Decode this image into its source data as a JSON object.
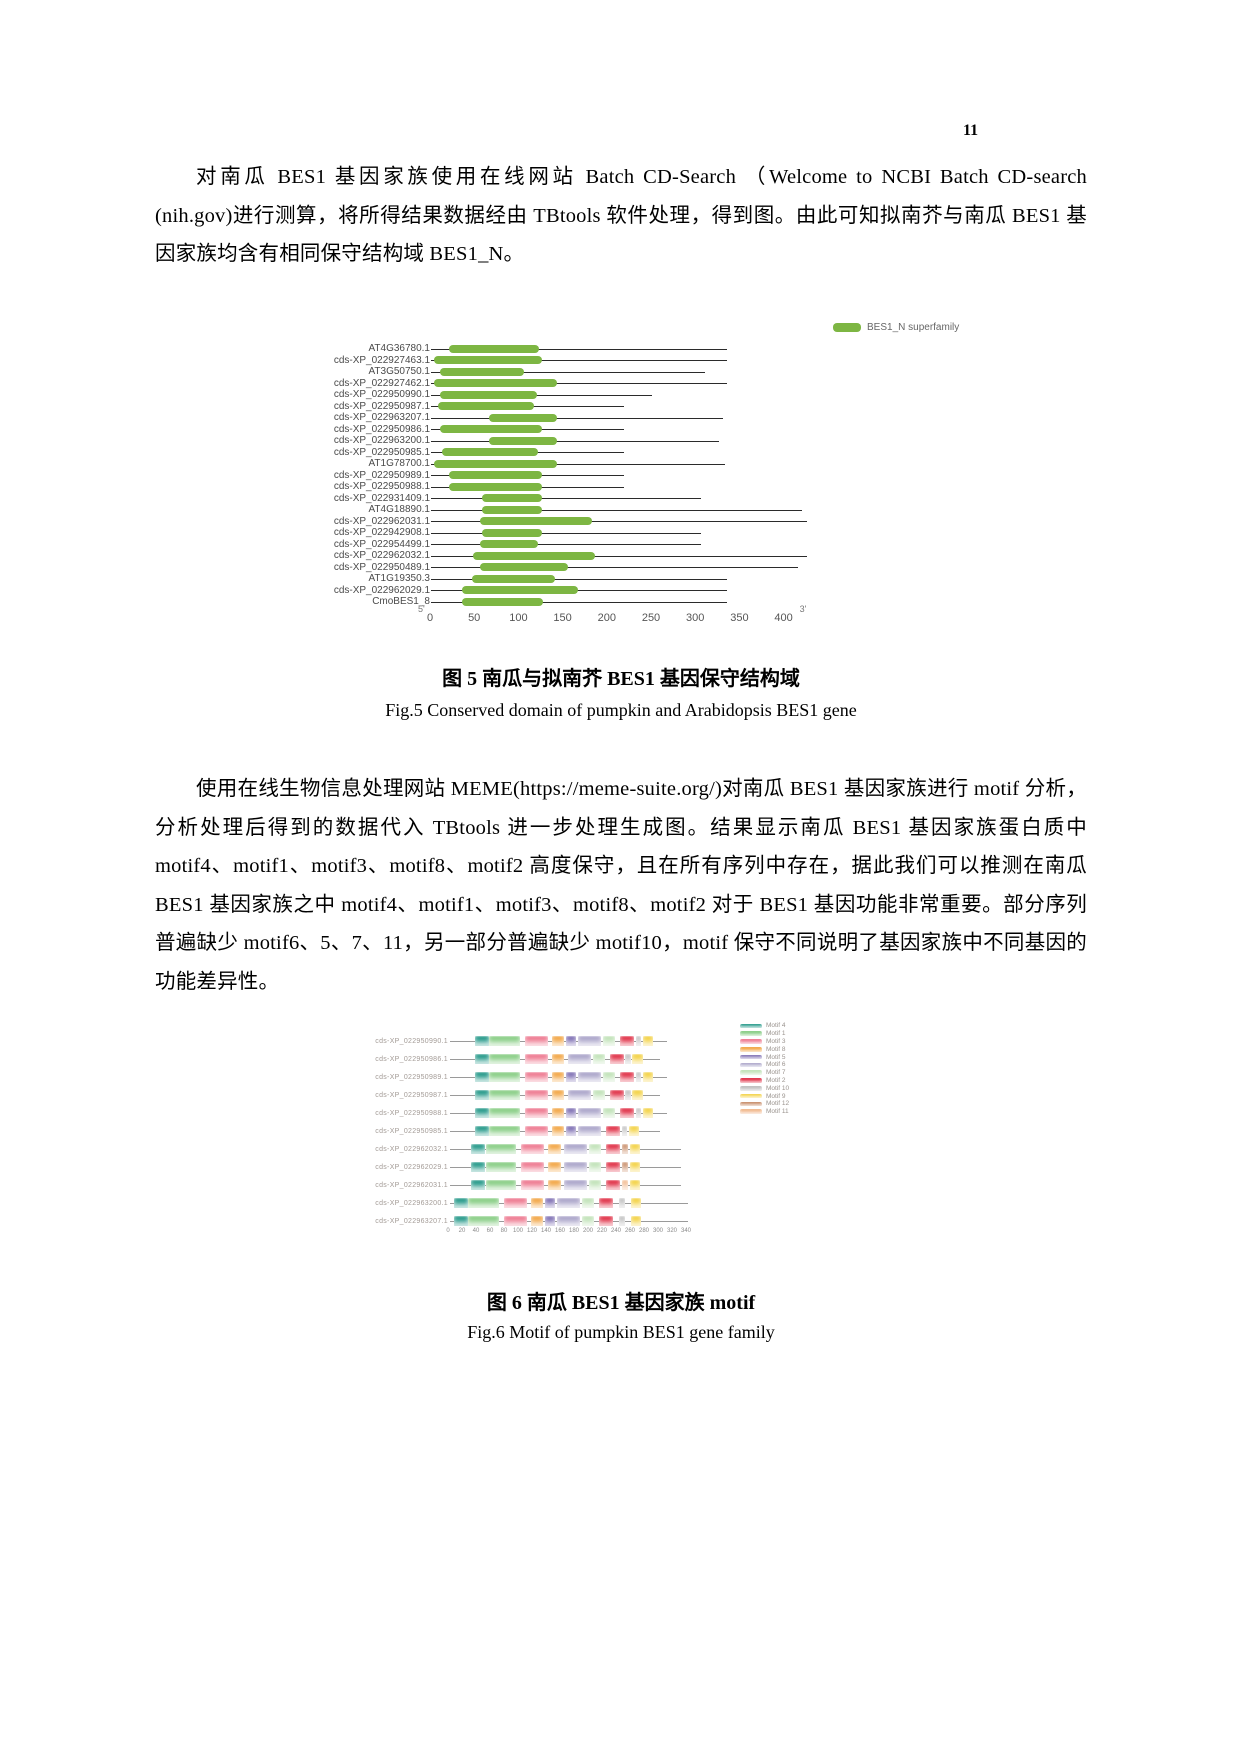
{
  "page": {
    "number": "11"
  },
  "paragraphs": {
    "p1": "对南瓜 BES1 基因家族使用在线网站 Batch CD-Search （Welcome to NCBI Batch CD-search (nih.gov)进行测算，将所得结果数据经由 TBtools 软件处理，得到图。由此可知拟南芥与南瓜 BES1 基因家族均含有相同保守结构域 BES1_N。",
    "p2": "使用在线生物信息处理网站 MEME(https://meme-suite.org/)对南瓜 BES1 基因家族进行 motif 分析，分析处理后得到的数据代入 TBtools 进一步处理生成图。结果显示南瓜 BES1 基因家族蛋白质中 motif4、motif1、motif3、motif8、motif2 高度保守，且在所有序列中存在，据此我们可以推测在南瓜 BES1 基因家族之中 motif4、motif1、motif3、motif8、motif2 对于 BES1 基因功能非常重要。部分序列普遍缺少 motif6、5、7、11，另一部分普遍缺少 motif10，motif 保守不同说明了基因家族中不同基因的功能差异性。"
  },
  "figure5": {
    "caption_zh": "图 5 南瓜与拟南芥 BES1 基因保守结构域",
    "caption_en": "Fig.5 Conserved domain of pumpkin and Arabidopsis BES1 gene"
  },
  "figure6": {
    "caption_zh": "图 6 南瓜 BES1 基因家族 motif",
    "caption_en": "Fig.6 Motif of pumpkin BES1 gene family"
  },
  "chart_data": [
    {
      "type": "domain-track",
      "title": "图 5 南瓜与拟南芥 BES1 基因保守结构域",
      "legend_label": "BES1_N superfamily",
      "domain_color": "#7db643",
      "xlim": [
        0,
        430
      ],
      "xticks": [
        0,
        50,
        100,
        150,
        200,
        250,
        300,
        350,
        400
      ],
      "end_labels": {
        "left": "5'",
        "right": "3'"
      },
      "rows": [
        {
          "label": "AT4G36780.1",
          "length": 335,
          "domain": [
            20,
            122
          ]
        },
        {
          "label": "cds-XP_022927463.1",
          "length": 335,
          "domain": [
            3,
            126
          ]
        },
        {
          "label": "AT3G50750.1",
          "length": 310,
          "domain": [
            10,
            105
          ]
        },
        {
          "label": "cds-XP_022927462.1",
          "length": 335,
          "domain": [
            3,
            142
          ]
        },
        {
          "label": "cds-XP_022950990.1",
          "length": 250,
          "domain": [
            10,
            120
          ]
        },
        {
          "label": "cds-XP_022950987.1",
          "length": 218,
          "domain": [
            8,
            116
          ]
        },
        {
          "label": "cds-XP_022963207.1",
          "length": 330,
          "domain": [
            66,
            142
          ]
        },
        {
          "label": "cds-XP_022950986.1",
          "length": 218,
          "domain": [
            10,
            126
          ]
        },
        {
          "label": "cds-XP_022963200.1",
          "length": 326,
          "domain": [
            66,
            142
          ]
        },
        {
          "label": "cds-XP_022950985.1",
          "length": 218,
          "domain": [
            12,
            121
          ]
        },
        {
          "label": "AT1G78700.1",
          "length": 333,
          "domain": [
            3,
            142
          ]
        },
        {
          "label": "cds-XP_022950989.1",
          "length": 218,
          "domain": [
            20,
            126
          ]
        },
        {
          "label": "cds-XP_022950988.1",
          "length": 218,
          "domain": [
            20,
            126
          ]
        },
        {
          "label": "cds-XP_022931409.1",
          "length": 305,
          "domain": [
            58,
            126
          ]
        },
        {
          "label": "AT4G18890.1",
          "length": 420,
          "domain": [
            58,
            126
          ]
        },
        {
          "label": "cds-XP_022962031.1",
          "length": 425,
          "domain": [
            55,
            182
          ]
        },
        {
          "label": "cds-XP_022942908.1",
          "length": 305,
          "domain": [
            58,
            126
          ]
        },
        {
          "label": "cds-XP_022954499.1",
          "length": 305,
          "domain": [
            55,
            121
          ]
        },
        {
          "label": "cds-XP_022962032.1",
          "length": 425,
          "domain": [
            48,
            185
          ]
        },
        {
          "label": "cds-XP_022950489.1",
          "length": 415,
          "domain": [
            55,
            155
          ]
        },
        {
          "label": "AT1G19350.3",
          "length": 335,
          "domain": [
            46,
            140
          ]
        },
        {
          "label": "cds-XP_022962029.1",
          "length": 335,
          "domain": [
            35,
            166
          ]
        },
        {
          "label": "CmoBES1_8",
          "length": 335,
          "domain": [
            35,
            127
          ]
        }
      ]
    },
    {
      "type": "motif-track",
      "title": "图 6 南瓜 BES1 基因家族 motif",
      "xlim": [
        0,
        340
      ],
      "xticks": [
        0,
        20,
        40,
        60,
        80,
        100,
        120,
        140,
        160,
        180,
        200,
        220,
        240,
        260,
        280,
        300,
        320,
        340
      ],
      "legend": [
        {
          "name": "Motif 4",
          "color": "#2f9e8f"
        },
        {
          "name": "Motif 1",
          "color": "#8ed08b"
        },
        {
          "name": "Motif 3",
          "color": "#ef8096"
        },
        {
          "name": "Motif 8",
          "color": "#f3aa4e"
        },
        {
          "name": "Motif 5",
          "color": "#8678b8"
        },
        {
          "name": "Motif 6",
          "color": "#b0aacd"
        },
        {
          "name": "Motif 7",
          "color": "#c4e4bc"
        },
        {
          "name": "Motif 2",
          "color": "#e23b50"
        },
        {
          "name": "Motif 10",
          "color": "#c2c2c2"
        },
        {
          "name": "Motif 9",
          "color": "#f4d44d"
        },
        {
          "name": "Motif 12",
          "color": "#c98e6a"
        },
        {
          "name": "Motif 11",
          "color": "#f2bc93"
        }
      ],
      "rows": [
        {
          "label": "cds-XP_022950990.1",
          "line_end": 310,
          "blocks": [
            [
              "Motif 4",
              35,
              55
            ],
            [
              "Motif 1",
              56,
              100
            ],
            [
              "Motif 3",
              107,
              140
            ],
            [
              "Motif 8",
              145,
              163
            ],
            [
              "Motif 5",
              165,
              180
            ],
            [
              "Motif 6",
              183,
              216
            ],
            [
              "Motif 7",
              219,
              236
            ],
            [
              "Motif 2",
              243,
              263
            ],
            [
              "Motif 10",
              265,
              273
            ],
            [
              "Motif 9",
              275,
              290
            ]
          ]
        },
        {
          "label": "cds-XP_022950986.1",
          "line_end": 300,
          "blocks": [
            [
              "Motif 4",
              35,
              55
            ],
            [
              "Motif 1",
              56,
              100
            ],
            [
              "Motif 3",
              107,
              140
            ],
            [
              "Motif 8",
              145,
              163
            ],
            [
              "Motif 6",
              168,
              201
            ],
            [
              "Motif 7",
              204,
              221
            ],
            [
              "Motif 2",
              228,
              248
            ],
            [
              "Motif 10",
              250,
              258
            ],
            [
              "Motif 9",
              260,
              275
            ]
          ]
        },
        {
          "label": "cds-XP_022950989.1",
          "line_end": 310,
          "blocks": [
            [
              "Motif 4",
              35,
              55
            ],
            [
              "Motif 1",
              56,
              100
            ],
            [
              "Motif 3",
              107,
              140
            ],
            [
              "Motif 8",
              145,
              163
            ],
            [
              "Motif 5",
              165,
              180
            ],
            [
              "Motif 6",
              183,
              216
            ],
            [
              "Motif 7",
              219,
              236
            ],
            [
              "Motif 2",
              243,
              263
            ],
            [
              "Motif 10",
              265,
              273
            ],
            [
              "Motif 9",
              275,
              290
            ]
          ]
        },
        {
          "label": "cds-XP_022950987.1",
          "line_end": 300,
          "blocks": [
            [
              "Motif 4",
              35,
              55
            ],
            [
              "Motif 1",
              56,
              100
            ],
            [
              "Motif 3",
              107,
              140
            ],
            [
              "Motif 8",
              145,
              163
            ],
            [
              "Motif 6",
              168,
              201
            ],
            [
              "Motif 7",
              204,
              221
            ],
            [
              "Motif 2",
              228,
              248
            ],
            [
              "Motif 10",
              250,
              258
            ],
            [
              "Motif 9",
              260,
              275
            ]
          ]
        },
        {
          "label": "cds-XP_022950988.1",
          "line_end": 310,
          "blocks": [
            [
              "Motif 4",
              35,
              55
            ],
            [
              "Motif 1",
              56,
              100
            ],
            [
              "Motif 3",
              107,
              140
            ],
            [
              "Motif 8",
              145,
              163
            ],
            [
              "Motif 5",
              165,
              180
            ],
            [
              "Motif 6",
              183,
              216
            ],
            [
              "Motif 7",
              219,
              236
            ],
            [
              "Motif 2",
              243,
              263
            ],
            [
              "Motif 10",
              265,
              273
            ],
            [
              "Motif 9",
              275,
              290
            ]
          ]
        },
        {
          "label": "cds-XP_022950985.1",
          "line_end": 300,
          "blocks": [
            [
              "Motif 4",
              35,
              55
            ],
            [
              "Motif 1",
              56,
              100
            ],
            [
              "Motif 3",
              107,
              140
            ],
            [
              "Motif 8",
              145,
              163
            ],
            [
              "Motif 5",
              165,
              180
            ],
            [
              "Motif 6",
              183,
              216
            ],
            [
              "Motif 2",
              223,
              243
            ],
            [
              "Motif 10",
              245,
              253
            ],
            [
              "Motif 9",
              255,
              270
            ]
          ]
        },
        {
          "label": "cds-XP_022962032.1",
          "line_end": 330,
          "blocks": [
            [
              "Motif 4",
              30,
              50
            ],
            [
              "Motif 1",
              51,
              95
            ],
            [
              "Motif 3",
              102,
              135
            ],
            [
              "Motif 8",
              140,
              158
            ],
            [
              "Motif 6",
              163,
              196
            ],
            [
              "Motif 7",
              199,
              216
            ],
            [
              "Motif 2",
              223,
              243
            ],
            [
              "Motif 12",
              246,
              254
            ],
            [
              "Motif 9",
              257,
              272
            ]
          ]
        },
        {
          "label": "cds-XP_022962029.1",
          "line_end": 330,
          "blocks": [
            [
              "Motif 4",
              30,
              50
            ],
            [
              "Motif 1",
              51,
              95
            ],
            [
              "Motif 3",
              102,
              135
            ],
            [
              "Motif 8",
              140,
              158
            ],
            [
              "Motif 6",
              163,
              196
            ],
            [
              "Motif 7",
              199,
              216
            ],
            [
              "Motif 2",
              223,
              243
            ],
            [
              "Motif 12",
              246,
              254
            ],
            [
              "Motif 9",
              257,
              272
            ]
          ]
        },
        {
          "label": "cds-XP_022962031.1",
          "line_end": 330,
          "blocks": [
            [
              "Motif 4",
              30,
              50
            ],
            [
              "Motif 1",
              51,
              95
            ],
            [
              "Motif 3",
              102,
              135
            ],
            [
              "Motif 8",
              140,
              158
            ],
            [
              "Motif 6",
              163,
              196
            ],
            [
              "Motif 7",
              199,
              216
            ],
            [
              "Motif 2",
              223,
              243
            ],
            [
              "Motif 11",
              246,
              254
            ],
            [
              "Motif 9",
              257,
              272
            ]
          ]
        },
        {
          "label": "cds-XP_022963200.1",
          "line_end": 340,
          "blocks": [
            [
              "Motif 4",
              5,
              25
            ],
            [
              "Motif 1",
              26,
              70
            ],
            [
              "Motif 3",
              77,
              110
            ],
            [
              "Motif 8",
              115,
              133
            ],
            [
              "Motif 5",
              135,
              150
            ],
            [
              "Motif 6",
              153,
              186
            ],
            [
              "Motif 7",
              189,
              206
            ],
            [
              "Motif 2",
              213,
              233
            ],
            [
              "Motif 10",
              242,
              250
            ],
            [
              "Motif 9",
              258,
              273
            ]
          ]
        },
        {
          "label": "cds-XP_022963207.1",
          "line_end": 340,
          "blocks": [
            [
              "Motif 4",
              5,
              25
            ],
            [
              "Motif 1",
              26,
              70
            ],
            [
              "Motif 3",
              77,
              110
            ],
            [
              "Motif 8",
              115,
              133
            ],
            [
              "Motif 5",
              135,
              150
            ],
            [
              "Motif 6",
              153,
              186
            ],
            [
              "Motif 7",
              189,
              206
            ],
            [
              "Motif 2",
              213,
              233
            ],
            [
              "Motif 10",
              242,
              250
            ],
            [
              "Motif 9",
              258,
              273
            ]
          ]
        }
      ]
    }
  ]
}
